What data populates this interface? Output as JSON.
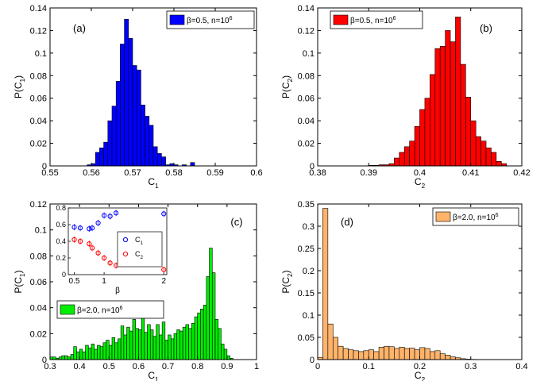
{
  "chart_data": [
    {
      "id": "a",
      "type": "bar",
      "panel_label": "(a)",
      "xlabel": "C",
      "xlabel_sub": "1",
      "ylabel": "P(C",
      "ylabel_sub": "1",
      "ylabel_tail": ")",
      "xlim": [
        0.55,
        0.6
      ],
      "ylim": [
        0,
        0.14
      ],
      "xticks": [
        "0.55",
        "0.56",
        "0.57",
        "0.58",
        "0.59",
        "0.6"
      ],
      "yticks": [
        "0",
        "0.02",
        "0.04",
        "0.06",
        "0.08",
        "0.1",
        "0.12",
        "0.14"
      ],
      "legend": {
        "label": "β=0.5, n=10",
        "sup": "6",
        "color": "#0000ff",
        "position": "top-right"
      },
      "color": "#0000ff",
      "x": [
        0.5595,
        0.5605,
        0.5615,
        0.5625,
        0.5635,
        0.5645,
        0.5655,
        0.5665,
        0.5675,
        0.5685,
        0.5695,
        0.5705,
        0.5715,
        0.5725,
        0.5735,
        0.5745,
        0.5755,
        0.5765,
        0.5775,
        0.5785,
        0.5795,
        0.5805,
        0.5815,
        0.5825,
        0.5835,
        0.5845
      ],
      "values": [
        0.001,
        0.002,
        0.012,
        0.016,
        0.021,
        0.04,
        0.053,
        0.075,
        0.108,
        0.13,
        0.113,
        0.089,
        0.085,
        0.054,
        0.044,
        0.036,
        0.017,
        0.011,
        0.008,
        0.001,
        0.002,
        0.001,
        0.0,
        0.001,
        0.0,
        0.003
      ]
    },
    {
      "id": "b",
      "type": "bar",
      "panel_label": "(b)",
      "xlabel": "C",
      "xlabel_sub": "2",
      "ylabel": "P(C",
      "ylabel_sub": "2",
      "ylabel_tail": ")",
      "xlim": [
        0.38,
        0.42
      ],
      "ylim": [
        0,
        0.14
      ],
      "xticks": [
        "0.38",
        "0.39",
        "0.4",
        "0.41",
        "0.42"
      ],
      "yticks": [
        "0",
        "0.02",
        "0.04",
        "0.06",
        "0.08",
        "0.1",
        "0.12",
        "0.14"
      ],
      "legend": {
        "label": "β=0.5, n=10",
        "sup": "6",
        "color": "#ff0000",
        "position": "top-left"
      },
      "color": "#ff0000",
      "x": [
        0.3905,
        0.3915,
        0.3925,
        0.3935,
        0.3945,
        0.3955,
        0.3965,
        0.3975,
        0.3985,
        0.3995,
        0.4005,
        0.4015,
        0.4025,
        0.4035,
        0.4045,
        0.4055,
        0.4065,
        0.4075,
        0.4085,
        0.4095,
        0.4105,
        0.4115,
        0.4125,
        0.4135,
        0.4145,
        0.4155,
        0.4165
      ],
      "values": [
        0.0005,
        0.0005,
        0.001,
        0.001,
        0.002,
        0.007,
        0.012,
        0.017,
        0.022,
        0.035,
        0.05,
        0.06,
        0.081,
        0.104,
        0.106,
        0.12,
        0.11,
        0.132,
        0.09,
        0.061,
        0.04,
        0.026,
        0.022,
        0.016,
        0.012,
        0.004,
        0.002
      ]
    },
    {
      "id": "c",
      "type": "bar",
      "panel_label": "(c)",
      "xlabel": "C",
      "xlabel_sub": "1",
      "ylabel": "P(C",
      "ylabel_sub": "1",
      "ylabel_tail": ")",
      "xlim": [
        0.3,
        1.0
      ],
      "ylim": [
        0,
        0.12
      ],
      "xticks": [
        "0.3",
        "0.4",
        "0.5",
        "0.6",
        "0.7",
        "0.8",
        "0.9",
        "1"
      ],
      "yticks": [
        "0",
        "0.02",
        "0.04",
        "0.06",
        "0.08",
        "0.1",
        "0.12"
      ],
      "legend": {
        "label": "β=2.0, n=10",
        "sup": "6",
        "color": "#00ee00",
        "position": "bottom-left"
      },
      "color": "#00ee00",
      "x": [
        0.305,
        0.315,
        0.325,
        0.335,
        0.345,
        0.355,
        0.365,
        0.375,
        0.385,
        0.395,
        0.405,
        0.415,
        0.425,
        0.435,
        0.445,
        0.455,
        0.465,
        0.475,
        0.485,
        0.495,
        0.505,
        0.515,
        0.525,
        0.535,
        0.545,
        0.555,
        0.565,
        0.575,
        0.585,
        0.595,
        0.605,
        0.615,
        0.625,
        0.635,
        0.645,
        0.655,
        0.665,
        0.675,
        0.685,
        0.695,
        0.705,
        0.715,
        0.725,
        0.735,
        0.745,
        0.755,
        0.765,
        0.775,
        0.785,
        0.795,
        0.805,
        0.815,
        0.825,
        0.835,
        0.845,
        0.855,
        0.865,
        0.875,
        0.885,
        0.895,
        0.905,
        0.915
      ],
      "values": [
        0.002,
        0.002,
        0.001,
        0.002,
        0.003,
        0.003,
        0.002,
        0.004,
        0.01,
        0.006,
        0.008,
        0.006,
        0.011,
        0.009,
        0.012,
        0.008,
        0.011,
        0.01,
        0.013,
        0.015,
        0.011,
        0.017,
        0.013,
        0.016,
        0.026,
        0.019,
        0.025,
        0.022,
        0.031,
        0.024,
        0.023,
        0.033,
        0.021,
        0.027,
        0.023,
        0.018,
        0.027,
        0.019,
        0.029,
        0.015,
        0.019,
        0.016,
        0.02,
        0.023,
        0.022,
        0.025,
        0.027,
        0.024,
        0.028,
        0.033,
        0.036,
        0.039,
        0.042,
        0.064,
        0.086,
        0.067,
        0.031,
        0.024,
        0.012,
        0.008,
        0.003,
        0.001
      ]
    },
    {
      "id": "c-inset",
      "type": "scatter",
      "xlabel": "β",
      "xlim": [
        0.4,
        2.05
      ],
      "ylim": [
        0,
        0.8
      ],
      "xticks": [
        "0.5",
        "1",
        "2"
      ],
      "yticks": [
        "0",
        "0.2",
        "0.4",
        "0.6",
        "0.8"
      ],
      "legend": {
        "position": "right"
      },
      "series": [
        {
          "name": "C",
          "name_sub": "1",
          "color": "#0000ff",
          "x": [
            0.5,
            0.6,
            0.75,
            0.8,
            0.9,
            1.0,
            1.1,
            1.2,
            2.0
          ],
          "y": [
            0.57,
            0.56,
            0.55,
            0.56,
            0.62,
            0.71,
            0.7,
            0.74,
            0.73
          ]
        },
        {
          "name": "C",
          "name_sub": "2",
          "color": "#ff0000",
          "x": [
            0.5,
            0.6,
            0.75,
            0.8,
            0.9,
            1.0,
            1.1,
            1.2,
            2.0
          ],
          "y": [
            0.42,
            0.4,
            0.37,
            0.32,
            0.26,
            0.2,
            0.14,
            0.11,
            0.06
          ]
        }
      ]
    },
    {
      "id": "d",
      "type": "bar",
      "panel_label": "(d)",
      "xlabel": "C",
      "xlabel_sub": "2",
      "ylabel": "P(C",
      "ylabel_sub": "2",
      "ylabel_tail": ")",
      "xlim": [
        0,
        0.4
      ],
      "ylim": [
        0,
        0.35
      ],
      "xticks": [
        "0",
        "0.1",
        "0.2",
        "0.3",
        "0.4"
      ],
      "yticks": [
        "0",
        "0.05",
        "0.1",
        "0.15",
        "0.2",
        "0.25",
        "0.3",
        "0.35"
      ],
      "legend": {
        "label": "β=2.0, n=10",
        "sup": "6",
        "color": "#ffb36b",
        "position": "top-right"
      },
      "color": "#ffb36b",
      "x": [
        0.005,
        0.015,
        0.025,
        0.035,
        0.045,
        0.055,
        0.065,
        0.075,
        0.085,
        0.095,
        0.105,
        0.115,
        0.125,
        0.135,
        0.145,
        0.155,
        0.165,
        0.175,
        0.185,
        0.195,
        0.205,
        0.215,
        0.225,
        0.235,
        0.245,
        0.255,
        0.265,
        0.275,
        0.285,
        0.295,
        0.305
      ],
      "values": [
        0.005,
        0.34,
        0.08,
        0.05,
        0.03,
        0.025,
        0.022,
        0.02,
        0.018,
        0.02,
        0.022,
        0.018,
        0.028,
        0.03,
        0.029,
        0.025,
        0.028,
        0.025,
        0.026,
        0.022,
        0.027,
        0.025,
        0.018,
        0.02,
        0.013,
        0.01,
        0.006,
        0.004,
        0.002,
        0.001,
        0.0005
      ]
    }
  ]
}
